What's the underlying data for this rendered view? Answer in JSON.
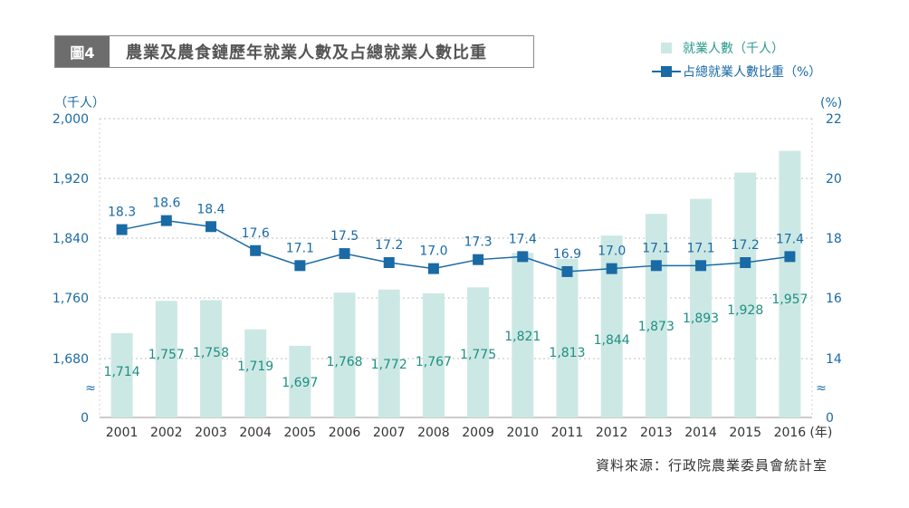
{
  "figure_tag": "圖4",
  "title": "農業及農食鏈歷年就業人數及占總就業人數比重",
  "legend": {
    "bar_label": "就業人數（千人）",
    "line_label": "占總就業人數比重（%）"
  },
  "source": "資料來源：行政院農業委員會統計室",
  "colors": {
    "bar": "#cce8e4",
    "line": "#1a6aa6",
    "bar_label": "#1e8f82"
  },
  "chart_data": {
    "type": "bar",
    "categories": [
      "2001",
      "2002",
      "2003",
      "2004",
      "2005",
      "2006",
      "2007",
      "2008",
      "2009",
      "2010",
      "2011",
      "2012",
      "2013",
      "2014",
      "2015",
      "2016"
    ],
    "x_unit": "(年)",
    "series": [
      {
        "name": "就業人數（千人）",
        "axis": "left",
        "type": "bar",
        "values": [
          1714,
          1757,
          1758,
          1719,
          1697,
          1768,
          1772,
          1767,
          1775,
          1821,
          1813,
          1844,
          1873,
          1893,
          1928,
          1957
        ]
      },
      {
        "name": "占總就業人數比重（%）",
        "axis": "right",
        "type": "line",
        "values": [
          18.3,
          18.6,
          18.4,
          17.6,
          17.1,
          17.5,
          17.2,
          17.0,
          17.3,
          17.4,
          16.9,
          17.0,
          17.1,
          17.1,
          17.2,
          17.4
        ]
      }
    ],
    "left_axis": {
      "unit": "（千人）",
      "ticks": [
        "2,000",
        "1,920",
        "1,840",
        "1,760",
        "1,680",
        "0"
      ],
      "tick_values": [
        2000,
        1920,
        1840,
        1760,
        1680
      ],
      "ylim": [
        1600,
        2000
      ],
      "break": true
    },
    "right_axis": {
      "unit": "(%)",
      "ticks": [
        "22",
        "20",
        "18",
        "16",
        "14",
        "0"
      ],
      "tick_values": [
        22,
        20,
        18,
        16,
        14
      ],
      "ylim": [
        12,
        22
      ],
      "break": true
    },
    "axis_break_symbol": "≈",
    "grid": true
  }
}
